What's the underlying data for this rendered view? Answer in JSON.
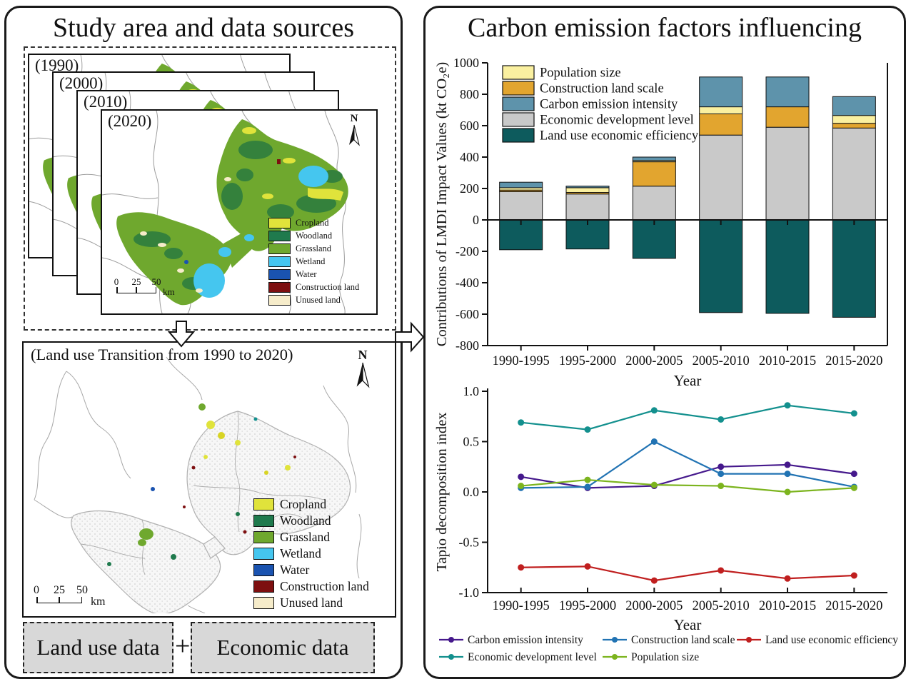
{
  "left_panel": {
    "title": "Study area and data sources",
    "frames": [
      {
        "label": "(1990)"
      },
      {
        "label": "(2000)"
      },
      {
        "label": "(2010)"
      },
      {
        "label": "(2020)"
      }
    ],
    "north_label": "N",
    "scalebar": {
      "ticks": [
        "0",
        "25",
        "50"
      ],
      "unit": "km"
    },
    "landuse_legend": [
      {
        "label": "Cropland",
        "color": "#e0e33b"
      },
      {
        "label": "Woodland",
        "color": "#1f7a4d"
      },
      {
        "label": "Grassland",
        "color": "#6fa82e"
      },
      {
        "label": "Wetland",
        "color": "#45c6ef"
      },
      {
        "label": "Water",
        "color": "#1a53b0"
      },
      {
        "label": "Construction land",
        "color": "#7d0f10"
      },
      {
        "label": "Unused land",
        "color": "#f6ecca"
      }
    ],
    "transition_title": "(Land use Transition from 1990 to 2020)",
    "data_boxes": {
      "left": "Land use data",
      "plus": "+",
      "right": "Economic data"
    }
  },
  "right_panel": {
    "title": "Carbon emission factors influencing"
  },
  "chart_data": [
    {
      "type": "bar",
      "stacked": true,
      "categories": [
        "1990-1995",
        "1995-2000",
        "2000-2005",
        "2005-2010",
        "2010-2015",
        "2015-2020"
      ],
      "series": [
        {
          "name": "Economic development level",
          "color": "#c9c9c9",
          "values": [
            180,
            165,
            215,
            540,
            590,
            585
          ]
        },
        {
          "name": "Construction land scale",
          "color": "#e2a52f",
          "values": [
            10,
            10,
            155,
            135,
            130,
            30
          ]
        },
        {
          "name": "Population size",
          "color": "#faf0a0",
          "values": [
            15,
            30,
            8,
            45,
            0,
            50
          ]
        },
        {
          "name": "Carbon emission intensity",
          "color": "#5e93ab",
          "values": [
            35,
            10,
            22,
            190,
            190,
            120
          ]
        },
        {
          "name": "Land use economic efficiency",
          "color": "#0d5b5d",
          "values": [
            -190,
            -185,
            -245,
            -590,
            -595,
            -620
          ]
        }
      ],
      "legend_order": [
        "Population size",
        "Construction land scale",
        "Carbon emission intensity",
        "Economic development level",
        "Land use economic efficiency"
      ],
      "ylabel": "Contributions of LMDI Impact Values (kt CO₂e)",
      "xlabel": "Year",
      "ylim": [
        -800,
        1000
      ],
      "yticks": [
        "1000",
        "800",
        "600",
        "400",
        "200",
        "0",
        "-200",
        "-400",
        "-600",
        "-800"
      ]
    },
    {
      "type": "line",
      "categories": [
        "1990-1995",
        "1995-2000",
        "2000-2005",
        "2005-2010",
        "2010-2015",
        "2015-2020"
      ],
      "series": [
        {
          "name": "Carbon emission intensity",
          "color": "#45188c",
          "values": [
            0.15,
            0.04,
            0.06,
            0.25,
            0.27,
            0.18
          ]
        },
        {
          "name": "Construction land scale",
          "color": "#2173b3",
          "values": [
            0.04,
            0.05,
            0.5,
            0.18,
            0.18,
            0.05
          ]
        },
        {
          "name": "Land use economic efficiency",
          "color": "#c01f1f",
          "values": [
            -0.75,
            -0.74,
            -0.88,
            -0.78,
            -0.86,
            -0.83
          ]
        },
        {
          "name": "Economic development level",
          "color": "#13908e",
          "values": [
            0.69,
            0.62,
            0.81,
            0.72,
            0.86,
            0.78
          ]
        },
        {
          "name": "Population size",
          "color": "#7cb41e",
          "values": [
            0.06,
            0.12,
            0.07,
            0.06,
            0.0,
            0.04
          ]
        }
      ],
      "legend_rows": [
        [
          "Carbon emission intensity",
          "Construction land scale",
          "Land use economic efficiency"
        ],
        [
          "Economic development level",
          "Population size"
        ]
      ],
      "ylabel": "Tapio decomposition index",
      "xlabel": "Year",
      "ylim": [
        -1.0,
        1.0
      ],
      "yticks": [
        "1.0",
        "0.5",
        "0.0",
        "-0.5",
        "-1.0"
      ]
    }
  ]
}
